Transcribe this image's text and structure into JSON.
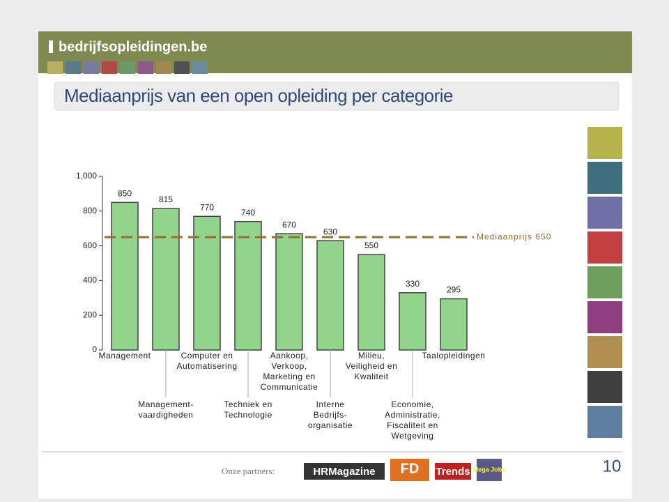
{
  "slide": {
    "logo": "bedrijfsopleidingen.be",
    "partners_label": "Onze partners:",
    "partners": [
      "HRMagazine",
      "FD",
      "Trends",
      "Mega Jobs"
    ],
    "page_number": "10"
  },
  "chart_data": {
    "type": "bar",
    "title": "Mediaanprijs van een open opleiding per categorie",
    "categories": [
      "Management",
      "Management-\nvaardigheden",
      "Computer en\nAutomatisering",
      "Techniek en\nTechnologie",
      "Aankoop,\nVerkoop,\nMarketing en\nCommunicatie",
      "Interne\nBedrijfs-\norganisatie",
      "Milieu,\nVeiligheid en\nKwaliteit",
      "Economie,\nAdministratie,\nFiscaliteit en\nWetgeving",
      "Taalopleidingen"
    ],
    "values": [
      850,
      815,
      770,
      740,
      670,
      630,
      550,
      330,
      295
    ],
    "color": "#93d48c",
    "ylim": [
      0,
      1000
    ],
    "yticks": [
      0,
      200,
      400,
      600,
      800,
      {
        "value": 1000,
        "label": "1,000"
      }
    ],
    "reference_line": {
      "value": 650,
      "label": "Mediaanprijs 650",
      "color": "#9a6b2f"
    }
  }
}
